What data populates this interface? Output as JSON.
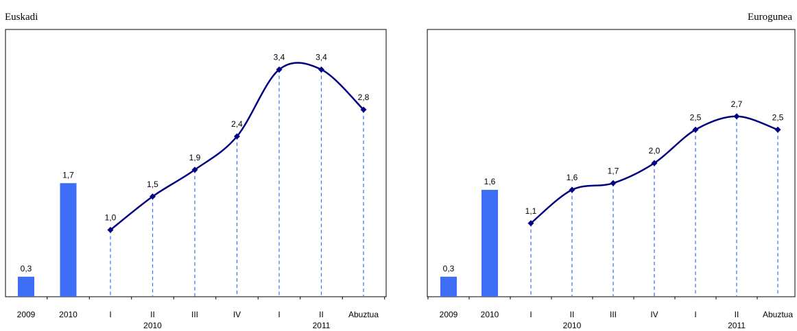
{
  "charts": {
    "left_title": "Euskadi",
    "right_title": "Eurogunea"
  },
  "colors": {
    "bar": "#3d6ef5",
    "line": "#000080",
    "dash": "#3d6ef5",
    "frame": "#000000"
  },
  "chart_data": [
    {
      "type": "bar+line",
      "title": "Euskadi",
      "ylim": [
        0,
        4.0
      ],
      "bars": {
        "categories": [
          "2009",
          "2010"
        ],
        "values": [
          0.3,
          1.7
        ],
        "labels": [
          "0,3",
          "1,7"
        ]
      },
      "line": {
        "categories": [
          "I",
          "II",
          "III",
          "IV",
          "I",
          "II",
          "Abuztua"
        ],
        "values": [
          1.0,
          1.5,
          1.9,
          2.4,
          3.4,
          3.4,
          2.8
        ],
        "labels": [
          "1,0",
          "1,5",
          "1,9",
          "2,4",
          "3,4",
          "3,4",
          "2,8"
        ]
      },
      "year_labels": [
        "2010",
        "2011"
      ]
    },
    {
      "type": "bar+line",
      "title": "Eurogunea",
      "ylim": [
        0,
        4.0
      ],
      "bars": {
        "categories": [
          "2009",
          "2010"
        ],
        "values": [
          0.3,
          1.6
        ],
        "labels": [
          "0,3",
          "1,6"
        ]
      },
      "line": {
        "categories": [
          "I",
          "II",
          "III",
          "IV",
          "I",
          "II",
          "Abuztua"
        ],
        "values": [
          1.1,
          1.6,
          1.7,
          2.0,
          2.5,
          2.7,
          2.5
        ],
        "labels": [
          "1,1",
          "1,6",
          "1,7",
          "2,0",
          "2,5",
          "2,7",
          "2,5"
        ]
      },
      "year_labels": [
        "2010",
        "2011"
      ]
    }
  ]
}
